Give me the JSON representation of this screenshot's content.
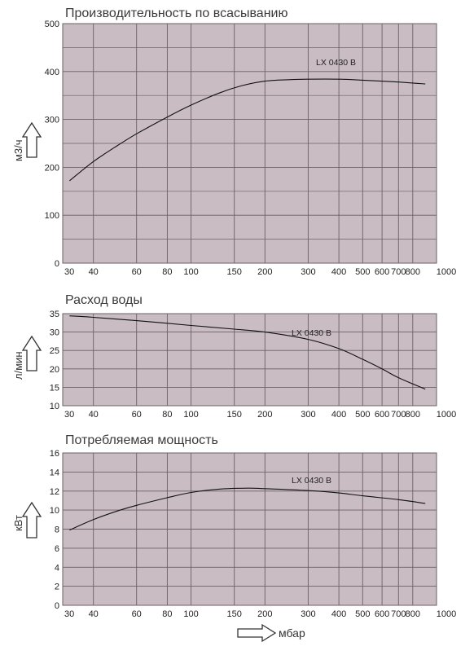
{
  "colors": {
    "plot_bg": "#c9bcc2",
    "grid": "#6a6066",
    "curve": "#111111",
    "text": "#333333"
  },
  "x_axis": {
    "unit": "мбар",
    "scale": "log",
    "range": [
      30,
      1000
    ],
    "ticks": [
      "40",
      "60",
      "80",
      "100",
      "150",
      "200",
      "300",
      "400",
      "500",
      "600",
      "700",
      "800",
      "1000"
    ],
    "tick_values": [
      40,
      60,
      80,
      100,
      150,
      200,
      300,
      400,
      500,
      600,
      700,
      800,
      1000
    ],
    "first_tick": {
      "label": "30",
      "value": 30
    }
  },
  "chart_data": [
    {
      "type": "line",
      "title": "Производительность по всасыванию",
      "ylabel": "м3/ч",
      "ylim": [
        0,
        500
      ],
      "y_ticks": [
        "0",
        "100",
        "200",
        "300",
        "400",
        "500"
      ],
      "y_tick_values": [
        0,
        100,
        200,
        300,
        400,
        500
      ],
      "minor_gridlines": [
        50,
        150,
        250,
        350,
        450
      ],
      "series": [
        {
          "name": "LX 0430 B",
          "x": [
            32,
            40,
            50,
            60,
            80,
            100,
            130,
            160,
            200,
            250,
            300,
            400,
            500,
            700,
            900
          ],
          "y": [
            172,
            212,
            245,
            270,
            305,
            330,
            355,
            370,
            380,
            383,
            384,
            384,
            382,
            378,
            374
          ]
        }
      ]
    },
    {
      "type": "line",
      "title": "Расход воды",
      "ylabel": "л/мин",
      "ylim": [
        10,
        35
      ],
      "y_ticks": [
        "10",
        "15",
        "20",
        "25",
        "30",
        "35"
      ],
      "y_tick_values": [
        10,
        15,
        20,
        25,
        30,
        35
      ],
      "minor_gridlines": [],
      "series": [
        {
          "name": "LX 0430 B",
          "x": [
            32,
            40,
            60,
            100,
            150,
            200,
            300,
            400,
            500,
            600,
            700,
            900
          ],
          "y": [
            34.4,
            34,
            33.1,
            31.8,
            30.8,
            30,
            28,
            25.5,
            22.6,
            20,
            17.6,
            14.5
          ]
        }
      ]
    },
    {
      "type": "line",
      "title": "Потребляемая мощность",
      "ylabel": "кВт",
      "ylim": [
        0,
        16
      ],
      "y_ticks": [
        "0",
        "2",
        "4",
        "6",
        "8",
        "10",
        "12",
        "14",
        "16"
      ],
      "y_tick_values": [
        0,
        2,
        4,
        6,
        8,
        10,
        12,
        14,
        16
      ],
      "minor_gridlines": [],
      "series": [
        {
          "name": "LX 0430 B",
          "x": [
            32,
            40,
            50,
            60,
            80,
            100,
            130,
            170,
            200,
            300,
            400,
            500,
            700,
            900
          ],
          "y": [
            7.9,
            9,
            9.9,
            10.5,
            11.3,
            11.85,
            12.2,
            12.3,
            12.25,
            12.05,
            11.8,
            11.5,
            11.1,
            10.7
          ]
        }
      ]
    }
  ]
}
